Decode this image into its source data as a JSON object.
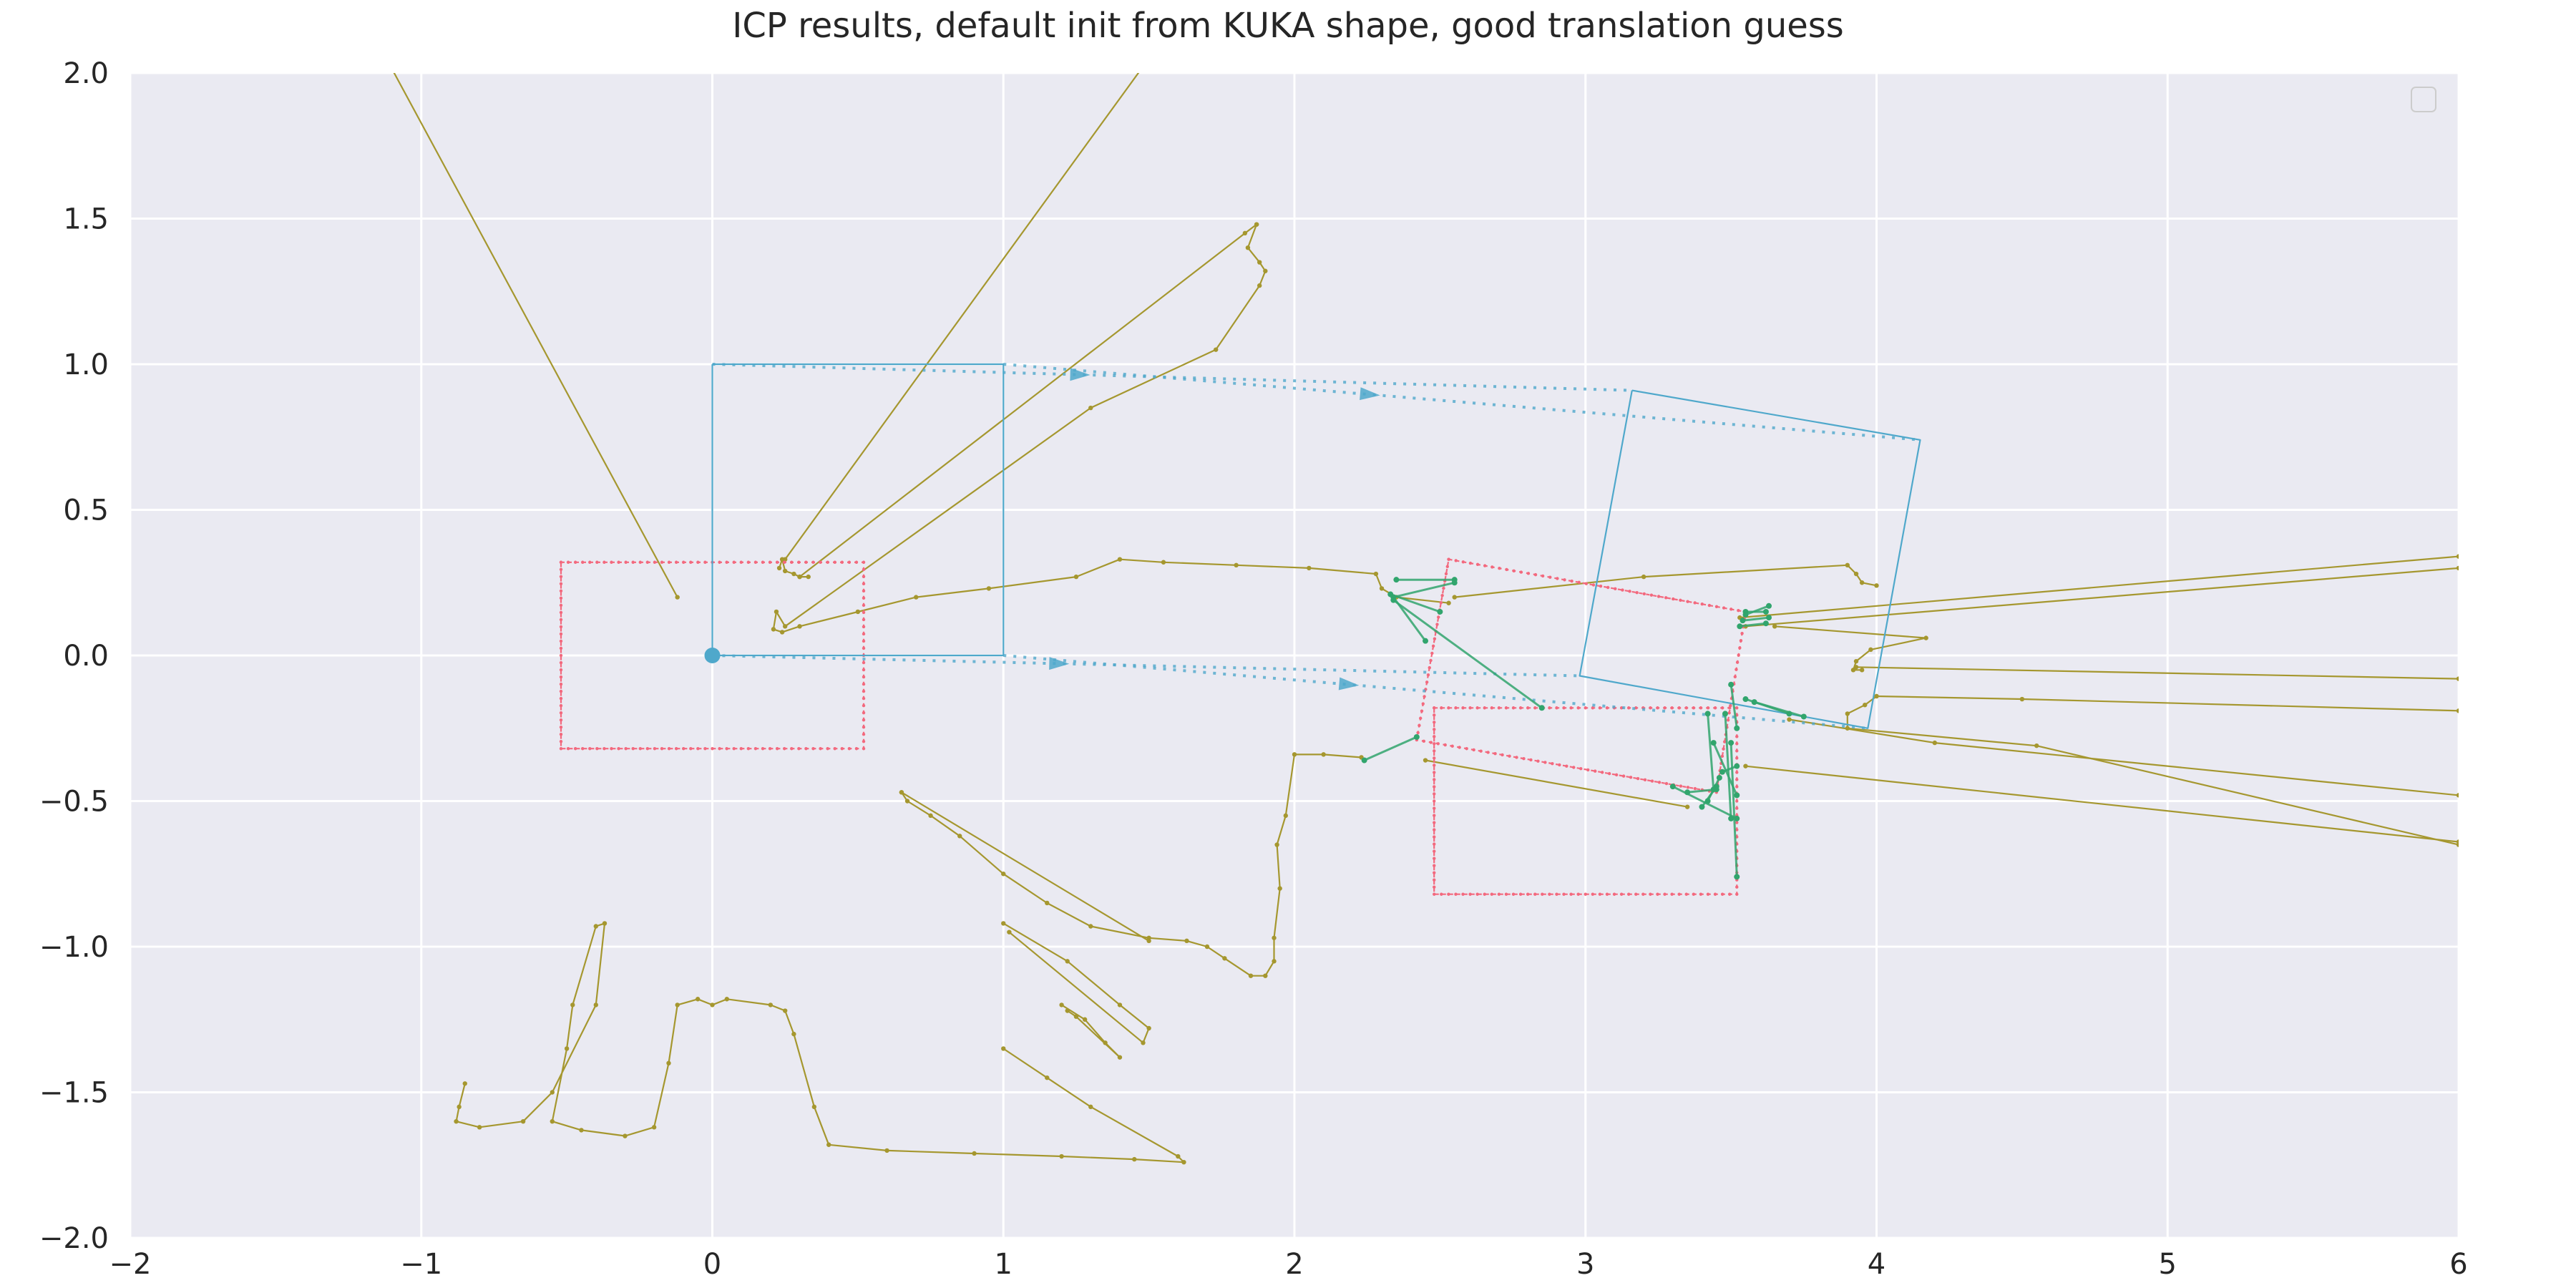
{
  "chart_data": {
    "type": "line",
    "title": "ICP results, default init from KUKA shape, good translation guess",
    "xlabel": "",
    "ylabel": "",
    "xlim": [
      -2,
      6
    ],
    "ylim": [
      -2,
      2
    ],
    "xticks": [
      -2,
      -1,
      0,
      1,
      2,
      3,
      4,
      5,
      6
    ],
    "xtick_labels": [
      "−2",
      "−1",
      "0",
      "1",
      "2",
      "3",
      "4",
      "5",
      "6"
    ],
    "yticks": [
      -2,
      -1.5,
      -1,
      -0.5,
      0,
      0.5,
      1,
      1.5,
      2
    ],
    "ytick_labels": [
      "−2.0",
      "−1.5",
      "−1.0",
      "−0.5",
      "0.0",
      "0.5",
      "1.0",
      "1.5",
      "2.0"
    ],
    "grid": true,
    "legend": {
      "location": "top-right",
      "entries": []
    },
    "colors": {
      "background": "#eaeaf2",
      "grid": "#ffffff",
      "scan": "#a5972f",
      "shape": "#f3697e",
      "frame": "#4fa8cb",
      "match": "#31a56d"
    },
    "series": [
      {
        "kind": "scan",
        "points": [
          [
            -1.12,
            2.05
          ],
          [
            -0.12,
            0.2
          ]
        ]
      },
      {
        "kind": "scan",
        "points": [
          [
            1.5,
            2.05
          ],
          [
            0.25,
            0.33
          ]
        ]
      },
      {
        "kind": "scan",
        "points": [
          [
            1.87,
            1.48
          ],
          [
            1.83,
            1.45
          ],
          [
            0.3,
            0.27
          ]
        ]
      },
      {
        "kind": "scan",
        "points": [
          [
            0.23,
            0.3
          ],
          [
            0.24,
            0.33
          ],
          [
            0.25,
            0.29
          ],
          [
            0.28,
            0.28
          ],
          [
            0.3,
            0.27
          ],
          [
            0.33,
            0.27
          ]
        ]
      },
      {
        "kind": "scan",
        "points": [
          [
            1.87,
            1.48
          ],
          [
            1.84,
            1.4
          ],
          [
            1.88,
            1.35
          ],
          [
            1.9,
            1.32
          ],
          [
            1.88,
            1.27
          ],
          [
            1.73,
            1.05
          ],
          [
            1.3,
            0.85
          ],
          [
            0.25,
            0.1
          ],
          [
            0.22,
            0.15
          ],
          [
            0.21,
            0.09
          ],
          [
            0.24,
            0.08
          ],
          [
            0.3,
            0.1
          ],
          [
            0.5,
            0.15
          ],
          [
            0.7,
            0.2
          ],
          [
            0.95,
            0.23
          ],
          [
            1.25,
            0.27
          ],
          [
            1.4,
            0.33
          ],
          [
            1.55,
            0.32
          ],
          [
            1.8,
            0.31
          ],
          [
            2.05,
            0.3
          ],
          [
            2.28,
            0.28
          ],
          [
            2.3,
            0.23
          ],
          [
            2.35,
            0.2
          ],
          [
            2.53,
            0.18
          ]
        ]
      },
      {
        "kind": "scan",
        "points": [
          [
            2.55,
            0.2
          ],
          [
            3.2,
            0.27
          ],
          [
            3.9,
            0.31
          ],
          [
            3.93,
            0.28
          ],
          [
            3.95,
            0.25
          ],
          [
            4.0,
            0.24
          ]
        ]
      },
      {
        "kind": "scan",
        "points": [
          [
            3.65,
            0.1
          ],
          [
            4.17,
            0.06
          ],
          [
            3.98,
            0.02
          ],
          [
            3.93,
            -0.02
          ],
          [
            3.92,
            -0.05
          ],
          [
            3.95,
            -0.05
          ]
        ]
      },
      {
        "kind": "scan",
        "points": [
          [
            3.53,
            0.13
          ],
          [
            6.0,
            0.34
          ]
        ]
      },
      {
        "kind": "scan",
        "points": [
          [
            3.55,
            0.1
          ],
          [
            6.0,
            0.3
          ]
        ]
      },
      {
        "kind": "scan",
        "points": [
          [
            3.93,
            -0.04
          ],
          [
            6.0,
            -0.08
          ]
        ]
      },
      {
        "kind": "scan",
        "points": [
          [
            4.0,
            -0.14
          ],
          [
            4.5,
            -0.15
          ],
          [
            6.0,
            -0.19
          ]
        ]
      },
      {
        "kind": "scan",
        "points": [
          [
            3.7,
            -0.22
          ],
          [
            4.2,
            -0.3
          ],
          [
            6.0,
            -0.48
          ]
        ]
      },
      {
        "kind": "scan",
        "points": [
          [
            4.0,
            -0.14
          ],
          [
            3.96,
            -0.17
          ],
          [
            3.9,
            -0.2
          ],
          [
            3.9,
            -0.25
          ],
          [
            4.55,
            -0.31
          ],
          [
            6.0,
            -0.65
          ]
        ]
      },
      {
        "kind": "scan",
        "points": [
          [
            3.55,
            -0.38
          ],
          [
            6.0,
            -0.64
          ]
        ]
      },
      {
        "kind": "scan",
        "points": [
          [
            2.45,
            -0.36
          ],
          [
            3.35,
            -0.52
          ]
        ]
      },
      {
        "kind": "scan",
        "points": [
          [
            0.65,
            -0.47
          ],
          [
            0.67,
            -0.5
          ],
          [
            0.75,
            -0.55
          ],
          [
            0.85,
            -0.62
          ],
          [
            1.0,
            -0.75
          ],
          [
            1.15,
            -0.85
          ],
          [
            1.3,
            -0.93
          ],
          [
            1.5,
            -0.97
          ],
          [
            1.63,
            -0.98
          ],
          [
            1.7,
            -1.0
          ],
          [
            1.76,
            -1.04
          ],
          [
            1.85,
            -1.1
          ],
          [
            1.9,
            -1.1
          ],
          [
            1.93,
            -1.05
          ],
          [
            1.93,
            -0.97
          ],
          [
            1.95,
            -0.8
          ],
          [
            1.94,
            -0.65
          ],
          [
            1.97,
            -0.55
          ],
          [
            2.0,
            -0.34
          ],
          [
            2.1,
            -0.34
          ],
          [
            2.23,
            -0.35
          ]
        ]
      },
      {
        "kind": "scan",
        "points": [
          [
            0.65,
            -0.47
          ],
          [
            1.5,
            -0.98
          ]
        ]
      },
      {
        "kind": "scan",
        "points": [
          [
            1.0,
            -0.92
          ],
          [
            1.22,
            -1.05
          ],
          [
            1.4,
            -1.2
          ],
          [
            1.5,
            -1.28
          ],
          [
            1.48,
            -1.33
          ],
          [
            1.02,
            -0.95
          ]
        ]
      },
      {
        "kind": "scan",
        "points": [
          [
            1.2,
            -1.2
          ],
          [
            1.28,
            -1.25
          ],
          [
            1.35,
            -1.33
          ],
          [
            1.4,
            -1.38
          ],
          [
            1.25,
            -1.24
          ],
          [
            1.22,
            -1.22
          ]
        ]
      },
      {
        "kind": "scan",
        "points": [
          [
            -0.85,
            -1.47
          ],
          [
            -0.87,
            -1.55
          ],
          [
            -0.88,
            -1.6
          ],
          [
            -0.8,
            -1.62
          ],
          [
            -0.65,
            -1.6
          ],
          [
            -0.55,
            -1.5
          ],
          [
            -0.4,
            -1.2
          ],
          [
            -0.37,
            -0.92
          ],
          [
            -0.4,
            -0.93
          ],
          [
            -0.48,
            -1.2
          ],
          [
            -0.5,
            -1.35
          ],
          [
            -0.55,
            -1.6
          ],
          [
            -0.45,
            -1.63
          ],
          [
            -0.3,
            -1.65
          ],
          [
            -0.2,
            -1.62
          ],
          [
            -0.15,
            -1.4
          ],
          [
            -0.12,
            -1.2
          ],
          [
            -0.05,
            -1.18
          ],
          [
            0.0,
            -1.2
          ],
          [
            0.05,
            -1.18
          ],
          [
            0.2,
            -1.2
          ],
          [
            0.25,
            -1.22
          ],
          [
            0.28,
            -1.3
          ],
          [
            0.35,
            -1.55
          ],
          [
            0.4,
            -1.68
          ],
          [
            0.6,
            -1.7
          ],
          [
            0.9,
            -1.71
          ],
          [
            1.2,
            -1.72
          ],
          [
            1.45,
            -1.73
          ],
          [
            1.62,
            -1.74
          ],
          [
            1.6,
            -1.72
          ],
          [
            1.3,
            -1.55
          ],
          [
            1.15,
            -1.45
          ],
          [
            1.0,
            -1.35
          ]
        ]
      },
      {
        "kind": "shape",
        "points": [
          [
            -0.52,
            0.32
          ],
          [
            0.52,
            0.32
          ],
          [
            0.52,
            -0.32
          ],
          [
            -0.52,
            -0.32
          ],
          [
            -0.52,
            0.32
          ]
        ]
      },
      {
        "kind": "shape",
        "points": [
          [
            2.48,
            -0.18
          ],
          [
            3.52,
            -0.18
          ],
          [
            3.52,
            -0.82
          ],
          [
            2.48,
            -0.82
          ],
          [
            2.48,
            -0.18
          ]
        ]
      },
      {
        "kind": "shape",
        "points": [
          [
            2.53,
            0.33
          ],
          [
            3.55,
            0.15
          ],
          [
            3.45,
            -0.47
          ],
          [
            2.42,
            -0.29
          ],
          [
            2.53,
            0.33
          ]
        ]
      },
      {
        "kind": "frame",
        "points": [
          [
            0.0,
            1.0
          ],
          [
            0.0,
            0.0
          ],
          [
            1.0,
            0.0
          ],
          [
            1.0,
            1.0
          ],
          [
            0.0,
            1.0
          ]
        ]
      },
      {
        "kind": "frame",
        "points": [
          [
            3.16,
            0.91
          ],
          [
            2.98,
            -0.07
          ],
          [
            3.97,
            -0.25
          ],
          [
            4.15,
            0.74
          ],
          [
            3.16,
            0.91
          ]
        ]
      },
      {
        "kind": "arrow",
        "points": [
          [
            0.0,
            1.0
          ],
          [
            3.16,
            0.91
          ]
        ]
      },
      {
        "kind": "arrow",
        "points": [
          [
            1.0,
            1.0
          ],
          [
            4.15,
            0.74
          ]
        ]
      },
      {
        "kind": "arrow",
        "points": [
          [
            0.0,
            0.0
          ],
          [
            2.98,
            -0.07
          ]
        ]
      },
      {
        "kind": "arrow",
        "points": [
          [
            1.0,
            0.0
          ],
          [
            3.97,
            -0.25
          ]
        ]
      },
      {
        "kind": "origin",
        "points": [
          [
            0.0,
            0.0
          ]
        ]
      },
      {
        "kind": "match",
        "points": [
          [
            2.55,
            0.26
          ],
          [
            2.35,
            0.26
          ]
        ]
      },
      {
        "kind": "match",
        "points": [
          [
            2.55,
            0.25
          ],
          [
            2.34,
            0.2
          ]
        ]
      },
      {
        "kind": "match",
        "points": [
          [
            2.5,
            0.15
          ],
          [
            2.33,
            0.21
          ]
        ]
      },
      {
        "kind": "match",
        "points": [
          [
            2.45,
            0.05
          ],
          [
            2.34,
            0.2
          ]
        ]
      },
      {
        "kind": "match",
        "points": [
          [
            2.42,
            -0.28
          ],
          [
            2.24,
            -0.36
          ]
        ]
      },
      {
        "kind": "match",
        "points": [
          [
            2.85,
            -0.18
          ],
          [
            2.34,
            0.19
          ]
        ]
      },
      {
        "kind": "match",
        "points": [
          [
            3.55,
            0.15
          ],
          [
            3.62,
            0.15
          ]
        ]
      },
      {
        "kind": "match",
        "points": [
          [
            3.55,
            0.14
          ],
          [
            3.63,
            0.17
          ]
        ]
      },
      {
        "kind": "match",
        "points": [
          [
            3.54,
            0.12
          ],
          [
            3.63,
            0.13
          ]
        ]
      },
      {
        "kind": "match",
        "points": [
          [
            3.53,
            0.1
          ],
          [
            3.62,
            0.11
          ]
        ]
      },
      {
        "kind": "match",
        "points": [
          [
            3.45,
            -0.46
          ],
          [
            3.35,
            -0.47
          ]
        ]
      },
      {
        "kind": "match",
        "points": [
          [
            3.45,
            -0.45
          ],
          [
            3.4,
            -0.52
          ]
        ]
      },
      {
        "kind": "match",
        "points": [
          [
            3.46,
            -0.42
          ],
          [
            3.42,
            -0.5
          ]
        ]
      },
      {
        "kind": "match",
        "points": [
          [
            3.47,
            -0.4
          ],
          [
            3.52,
            -0.38
          ]
        ]
      },
      {
        "kind": "match",
        "points": [
          [
            3.44,
            -0.3
          ],
          [
            3.52,
            -0.48
          ]
        ]
      },
      {
        "kind": "match",
        "points": [
          [
            3.48,
            -0.2
          ],
          [
            3.5,
            -0.56
          ]
        ]
      },
      {
        "kind": "match",
        "points": [
          [
            3.5,
            -0.3
          ],
          [
            3.52,
            -0.76
          ]
        ]
      },
      {
        "kind": "match",
        "points": [
          [
            3.3,
            -0.45
          ],
          [
            3.52,
            -0.56
          ]
        ]
      },
      {
        "kind": "match",
        "points": [
          [
            3.5,
            -0.1
          ],
          [
            3.52,
            -0.25
          ]
        ]
      },
      {
        "kind": "match",
        "points": [
          [
            3.42,
            -0.2
          ],
          [
            3.44,
            -0.46
          ]
        ]
      },
      {
        "kind": "match",
        "points": [
          [
            3.7,
            -0.2
          ],
          [
            3.55,
            -0.15
          ]
        ]
      },
      {
        "kind": "match",
        "points": [
          [
            3.75,
            -0.21
          ],
          [
            3.58,
            -0.16
          ]
        ]
      }
    ]
  }
}
